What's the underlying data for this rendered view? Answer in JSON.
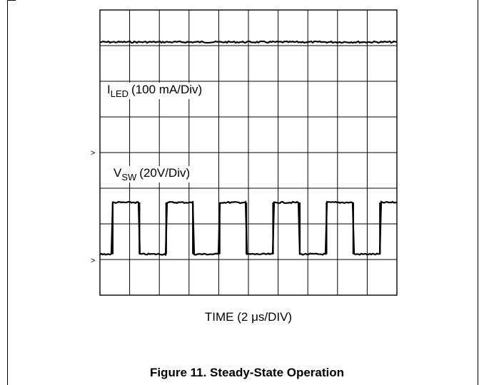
{
  "chart_data": {
    "type": "line",
    "x_divisions": 10,
    "y_divisions": 8,
    "xlabel": "TIME (2 μs/DIV)",
    "series": [
      {
        "name": "I",
        "name_sub": "LED",
        "scale": "(100 mA/Div)",
        "shape": "flat",
        "level_div": 7.1
      },
      {
        "name": "V",
        "name_sub": "SW",
        "scale": "(20V/Div)",
        "shape": "square",
        "low_div": 1.15,
        "high_div": 2.6,
        "period_div": 1.8,
        "rise_offset_div": 0.43,
        "duty": 0.5
      }
    ],
    "ground_markers": [
      ">",
      ">"
    ],
    "caption": "Figure 11. Steady-State Operation",
    "grid": true,
    "colors": {
      "grid": "#000000",
      "trace": "#000000",
      "background": "#ffffff"
    }
  }
}
